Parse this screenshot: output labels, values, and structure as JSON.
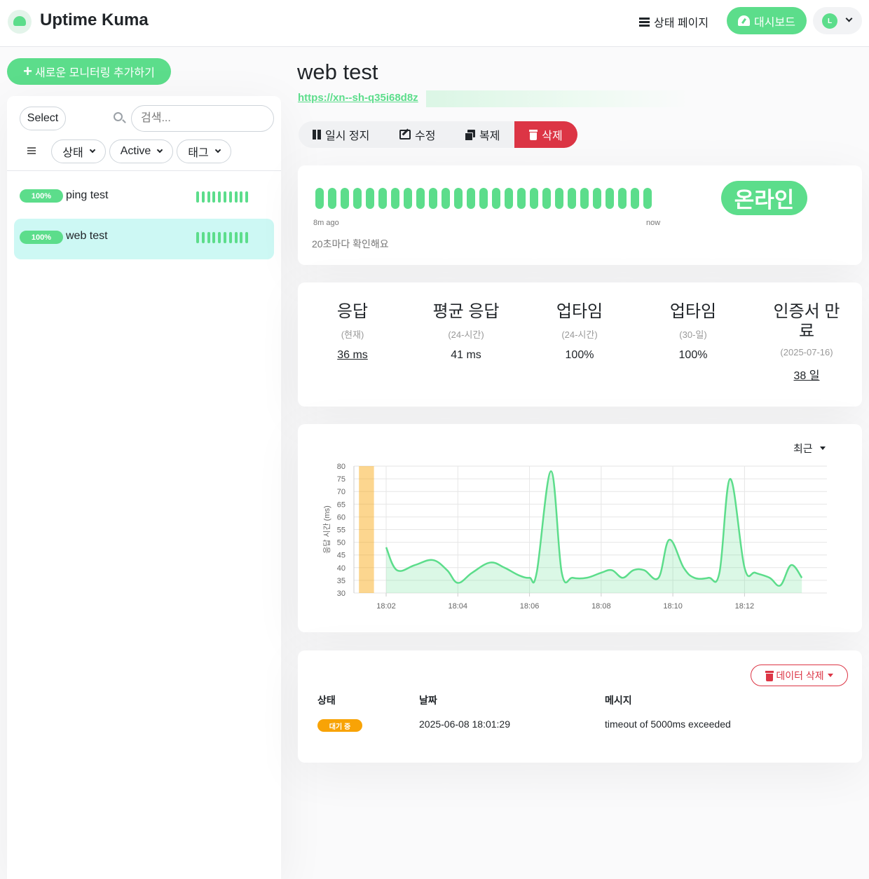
{
  "header": {
    "brand": "Uptime Kuma",
    "status_page_label": "상태 페이지",
    "dashboard_label": "대시보드",
    "avatar_initial": "L"
  },
  "sidebar": {
    "add_monitor_label": "새로운 모니터링 추가하기",
    "select_label": "Select",
    "search_placeholder": "검색...",
    "filters": [
      "상태",
      "Active",
      "태그"
    ],
    "monitors": [
      {
        "uptime": "100%",
        "name": "ping test",
        "beats": 10,
        "active": false
      },
      {
        "uptime": "100%",
        "name": "web test",
        "beats": 10,
        "active": true
      }
    ]
  },
  "monitor": {
    "title": "web test",
    "url": "https://xn--sh-q35i68d8z",
    "actions": {
      "pause": "일시 정지",
      "edit": "수정",
      "clone": "복제",
      "delete": "삭제"
    },
    "heartbeat": {
      "count": 27,
      "start_label": "8m ago",
      "end_label": "now",
      "interval_text": "20초마다 확인해요",
      "status": "온라인"
    },
    "stats": [
      {
        "title": "응답",
        "sub": "(현재)",
        "value": "36 ms",
        "underline": true
      },
      {
        "title": "평균 응답",
        "sub": "(24-시간)",
        "value": "41 ms",
        "underline": false
      },
      {
        "title": "업타임",
        "sub": "(24-시간)",
        "value": "100%",
        "underline": false
      },
      {
        "title": "업타임",
        "sub": "(30-일)",
        "value": "100%",
        "underline": false
      },
      {
        "title": "인증서 만료",
        "sub": "(2025-07-16)",
        "value": "38 일",
        "underline": true
      }
    ],
    "chart_range": "최근",
    "events": {
      "delete_data_label": "데이터 삭제",
      "headers": {
        "status": "상태",
        "date": "날짜",
        "message": "메시지"
      },
      "rows": [
        {
          "status": "대기 중",
          "date": "2025-06-08 18:01:29",
          "message": "timeout of 5000ms exceeded"
        }
      ]
    }
  },
  "colors": {
    "up": "#5cdd8b",
    "pending": "#f8a306",
    "danger": "#dc3545",
    "active_row": "#cdf8f4"
  },
  "chart_data": {
    "type": "area",
    "ylabel": "응답 시간 (ms)",
    "ylim": [
      30,
      80
    ],
    "yticks": [
      30,
      35,
      40,
      45,
      50,
      55,
      60,
      65,
      70,
      75,
      80
    ],
    "xticks": [
      "18:02",
      "18:04",
      "18:06",
      "18:08",
      "18:10",
      "18:12"
    ],
    "xlim_minutes": [
      1.1,
      14.3
    ],
    "grid": true,
    "series": [
      {
        "color": "#5cdd8b",
        "x": [
          2.0,
          2.3,
          2.8,
          3.3,
          3.7,
          4.0,
          4.4,
          4.9,
          5.3,
          5.7,
          6.0,
          6.2,
          6.6,
          6.9,
          7.2,
          7.6,
          8.0,
          8.3,
          8.6,
          8.9,
          9.2,
          9.6,
          9.9,
          10.3,
          10.6,
          11.0,
          11.3,
          11.6,
          12.0,
          12.3,
          12.7,
          13.0,
          13.3,
          13.6
        ],
        "y": [
          48,
          39,
          41,
          43,
          39,
          34,
          38,
          42,
          40,
          37,
          36,
          38,
          78,
          38,
          36,
          36,
          38,
          39,
          36,
          39,
          39,
          36,
          51,
          40,
          36,
          36,
          38,
          75,
          40,
          38,
          36,
          33,
          41,
          36
        ]
      }
    ],
    "annotations": [
      {
        "type": "pending-band",
        "x_start": 1.24,
        "x_end": 1.66,
        "color": "#f8a306"
      }
    ]
  }
}
